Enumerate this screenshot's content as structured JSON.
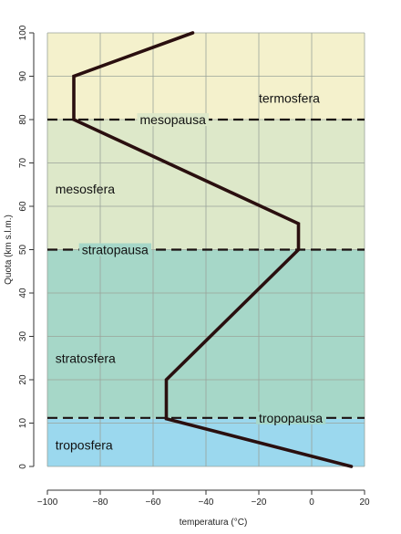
{
  "chart_data": {
    "type": "line",
    "title": "",
    "xlabel": "temperatura (°C)",
    "ylabel": "Quota (km s.l.m.)",
    "xlim": [
      -100,
      20
    ],
    "ylim": [
      0,
      100
    ],
    "x_ticks": [
      -100,
      -80,
      -60,
      -40,
      -20,
      0,
      20
    ],
    "x_tick_labels": [
      "−100",
      "−80",
      "−60",
      "−40",
      "−20",
      "0",
      "20"
    ],
    "y_ticks": [
      0,
      10,
      20,
      30,
      40,
      50,
      60,
      70,
      80,
      90,
      100
    ],
    "y_tick_labels": [
      "0",
      "10",
      "20",
      "30",
      "40",
      "50",
      "60",
      "70",
      "80",
      "90",
      "100"
    ],
    "grid": true,
    "series": [
      {
        "points": [
          {
            "x": 15,
            "y": 0
          },
          {
            "x": -55,
            "y": 11
          },
          {
            "x": -55,
            "y": 20
          },
          {
            "x": -5,
            "y": 50
          },
          {
            "x": -5,
            "y": 56
          },
          {
            "x": -90,
            "y": 80
          },
          {
            "x": -90,
            "y": 90
          },
          {
            "x": -45,
            "y": 100
          }
        ],
        "color": "#2a0f0f"
      }
    ],
    "bands": [
      {
        "label": "troposfera",
        "y0": 0,
        "y1": 11,
        "color": "#9bd8ee",
        "label_x": -97,
        "label_y": 5
      },
      {
        "label": "stratosfera",
        "y0": 11,
        "y1": 50,
        "color": "#a6d7c8",
        "label_x": -97,
        "label_y": 25
      },
      {
        "label": "mesosfera",
        "y0": 50,
        "y1": 80,
        "color": "#dde8c9",
        "label_x": -97,
        "label_y": 64
      },
      {
        "label": "termosfera",
        "y0": 80,
        "y1": 100,
        "color": "#f4f1cc",
        "label_x": -20,
        "label_y": 85
      }
    ],
    "boundaries": [
      {
        "label": "tropopausa",
        "y": 11.2,
        "label_x": -20
      },
      {
        "label": "stratopausa",
        "y": 50,
        "label_x": -87
      },
      {
        "label": "mesopausa",
        "y": 80,
        "label_x": -65
      }
    ]
  }
}
